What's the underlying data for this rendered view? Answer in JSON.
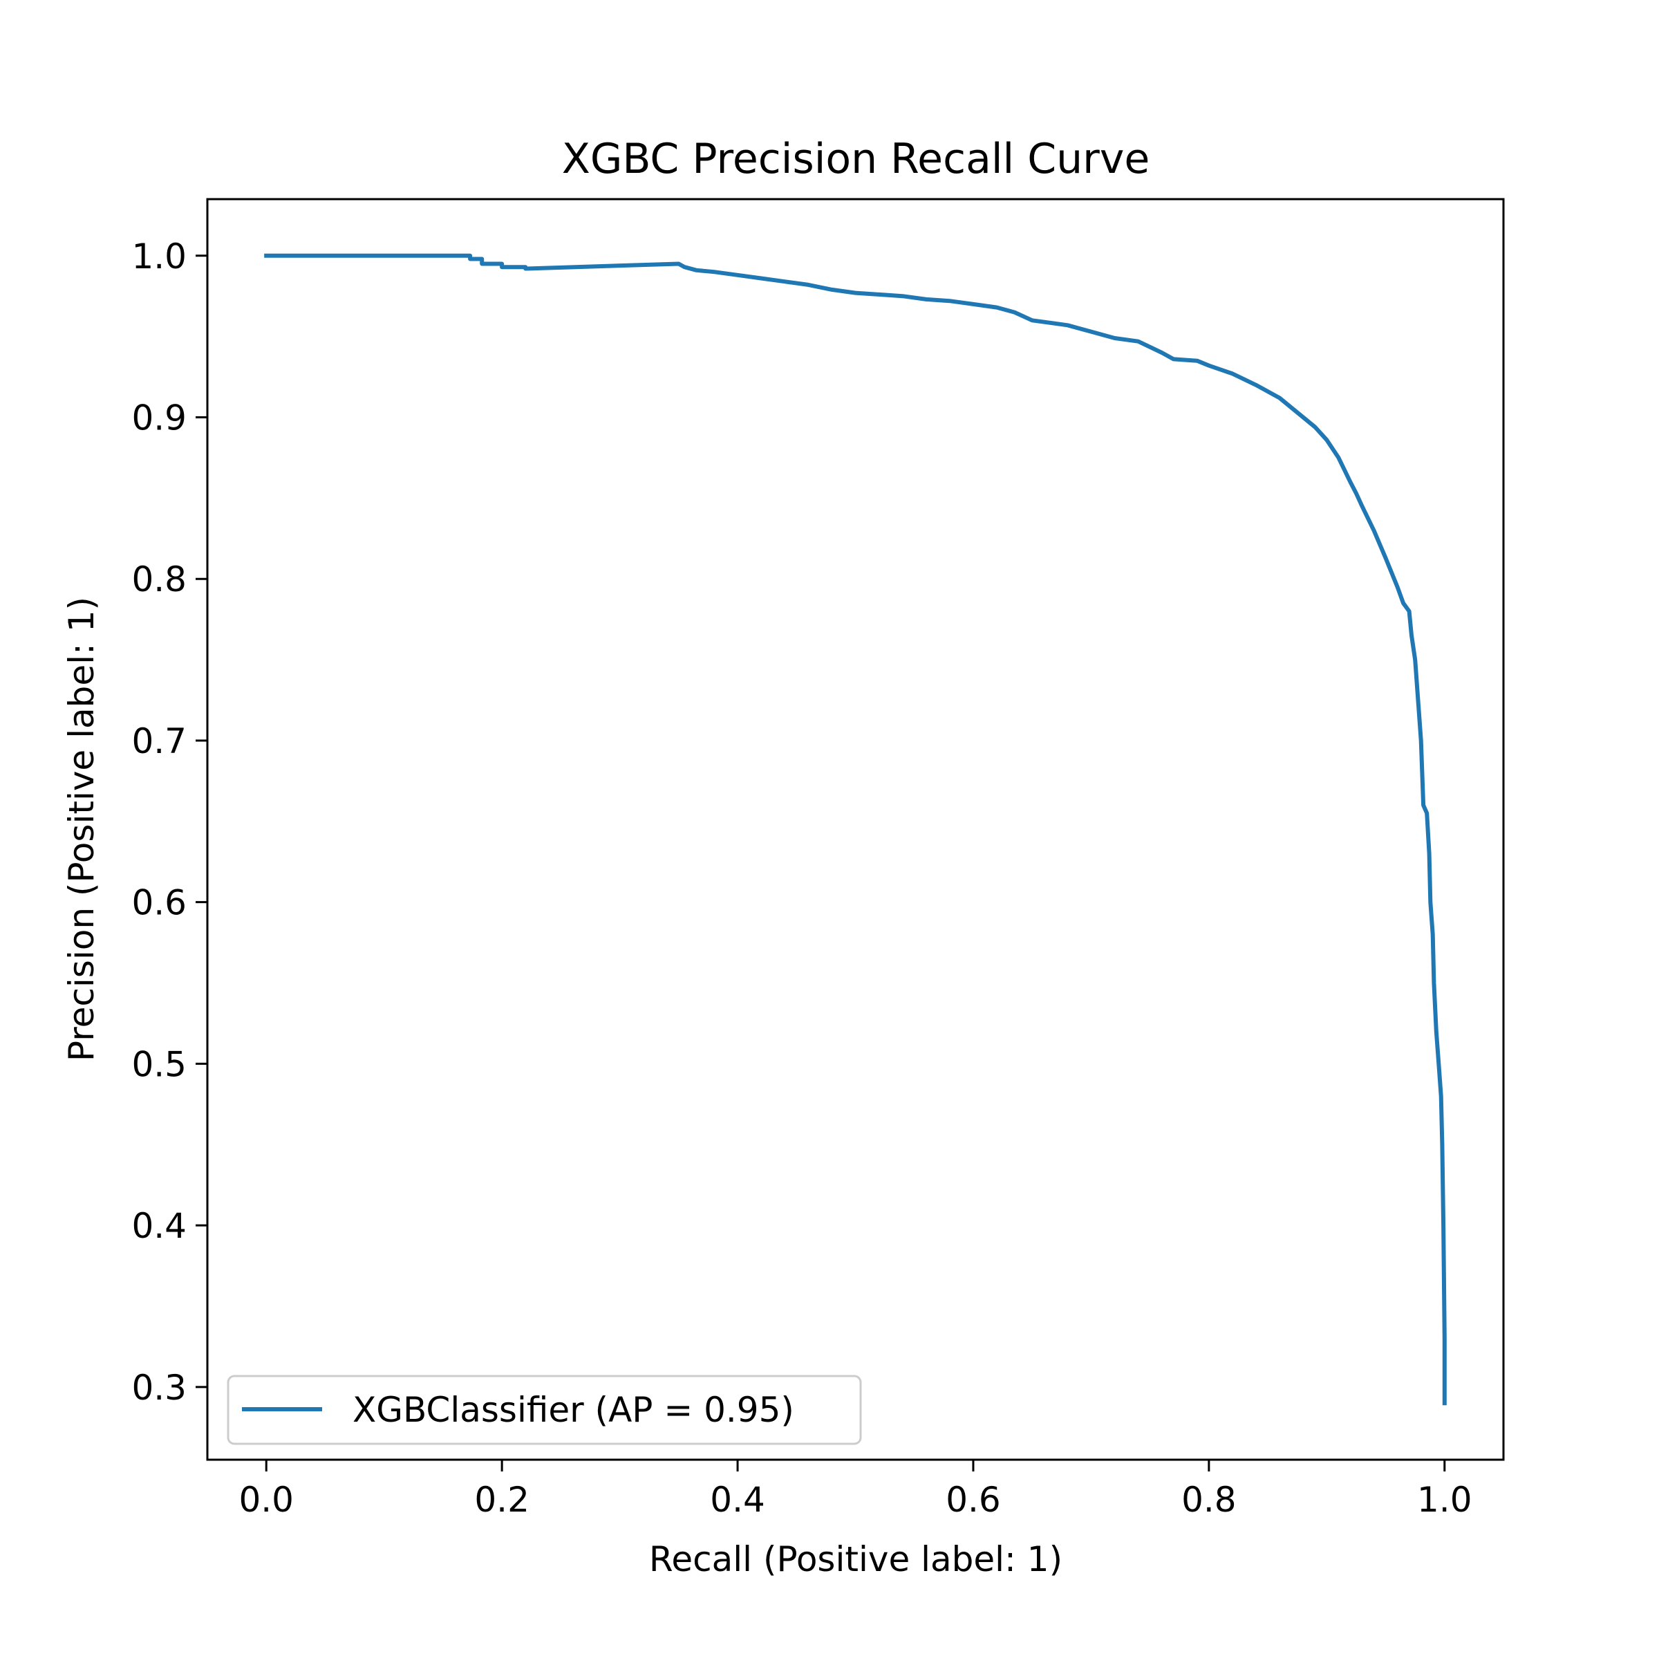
{
  "chart_data": {
    "type": "line",
    "title": "XGBC Precision Recall Curve",
    "xlabel": "Recall (Positive label: 1)",
    "ylabel": "Precision (Positive label: 1)",
    "xlim": [
      -0.05,
      1.05
    ],
    "ylim": [
      0.255,
      1.035
    ],
    "xticks": [
      0.0,
      0.2,
      0.4,
      0.6,
      0.8,
      1.0
    ],
    "xtick_labels": [
      "0.0",
      "0.2",
      "0.4",
      "0.6",
      "0.8",
      "1.0"
    ],
    "yticks": [
      0.3,
      0.4,
      0.5,
      0.6,
      0.7,
      0.8,
      0.9,
      1.0
    ],
    "ytick_labels": [
      "0.3",
      "0.4",
      "0.5",
      "0.6",
      "0.7",
      "0.8",
      "0.9",
      "1.0"
    ],
    "grid": false,
    "legend_position": "lower-left",
    "series": [
      {
        "name": "XGBClassifier (AP = 0.95)",
        "color": "#1f77b4",
        "x": [
          0.0,
          0.173,
          0.173,
          0.183,
          0.183,
          0.2,
          0.2,
          0.22,
          0.22,
          0.35,
          0.355,
          0.365,
          0.38,
          0.4,
          0.42,
          0.44,
          0.46,
          0.48,
          0.5,
          0.52,
          0.54,
          0.56,
          0.58,
          0.6,
          0.62,
          0.635,
          0.65,
          0.68,
          0.7,
          0.72,
          0.74,
          0.76,
          0.77,
          0.79,
          0.8,
          0.82,
          0.84,
          0.86,
          0.875,
          0.89,
          0.9,
          0.91,
          0.92,
          0.925,
          0.93,
          0.94,
          0.95,
          0.96,
          0.965,
          0.97,
          0.972,
          0.975,
          0.978,
          0.98,
          0.982,
          0.985,
          0.987,
          0.988,
          0.99,
          0.991,
          0.993,
          0.995,
          0.997,
          0.998,
          0.999,
          1.0,
          1.0
        ],
        "y": [
          1.0,
          1.0,
          0.998,
          0.998,
          0.995,
          0.995,
          0.993,
          0.993,
          0.992,
          0.995,
          0.993,
          0.991,
          0.99,
          0.988,
          0.986,
          0.984,
          0.982,
          0.979,
          0.977,
          0.976,
          0.975,
          0.973,
          0.972,
          0.97,
          0.968,
          0.965,
          0.96,
          0.957,
          0.953,
          0.949,
          0.947,
          0.94,
          0.936,
          0.935,
          0.932,
          0.927,
          0.92,
          0.912,
          0.903,
          0.894,
          0.886,
          0.875,
          0.86,
          0.853,
          0.845,
          0.83,
          0.813,
          0.795,
          0.785,
          0.78,
          0.765,
          0.75,
          0.72,
          0.7,
          0.66,
          0.655,
          0.63,
          0.6,
          0.58,
          0.55,
          0.52,
          0.5,
          0.48,
          0.45,
          0.4,
          0.33,
          0.29
        ]
      }
    ]
  }
}
